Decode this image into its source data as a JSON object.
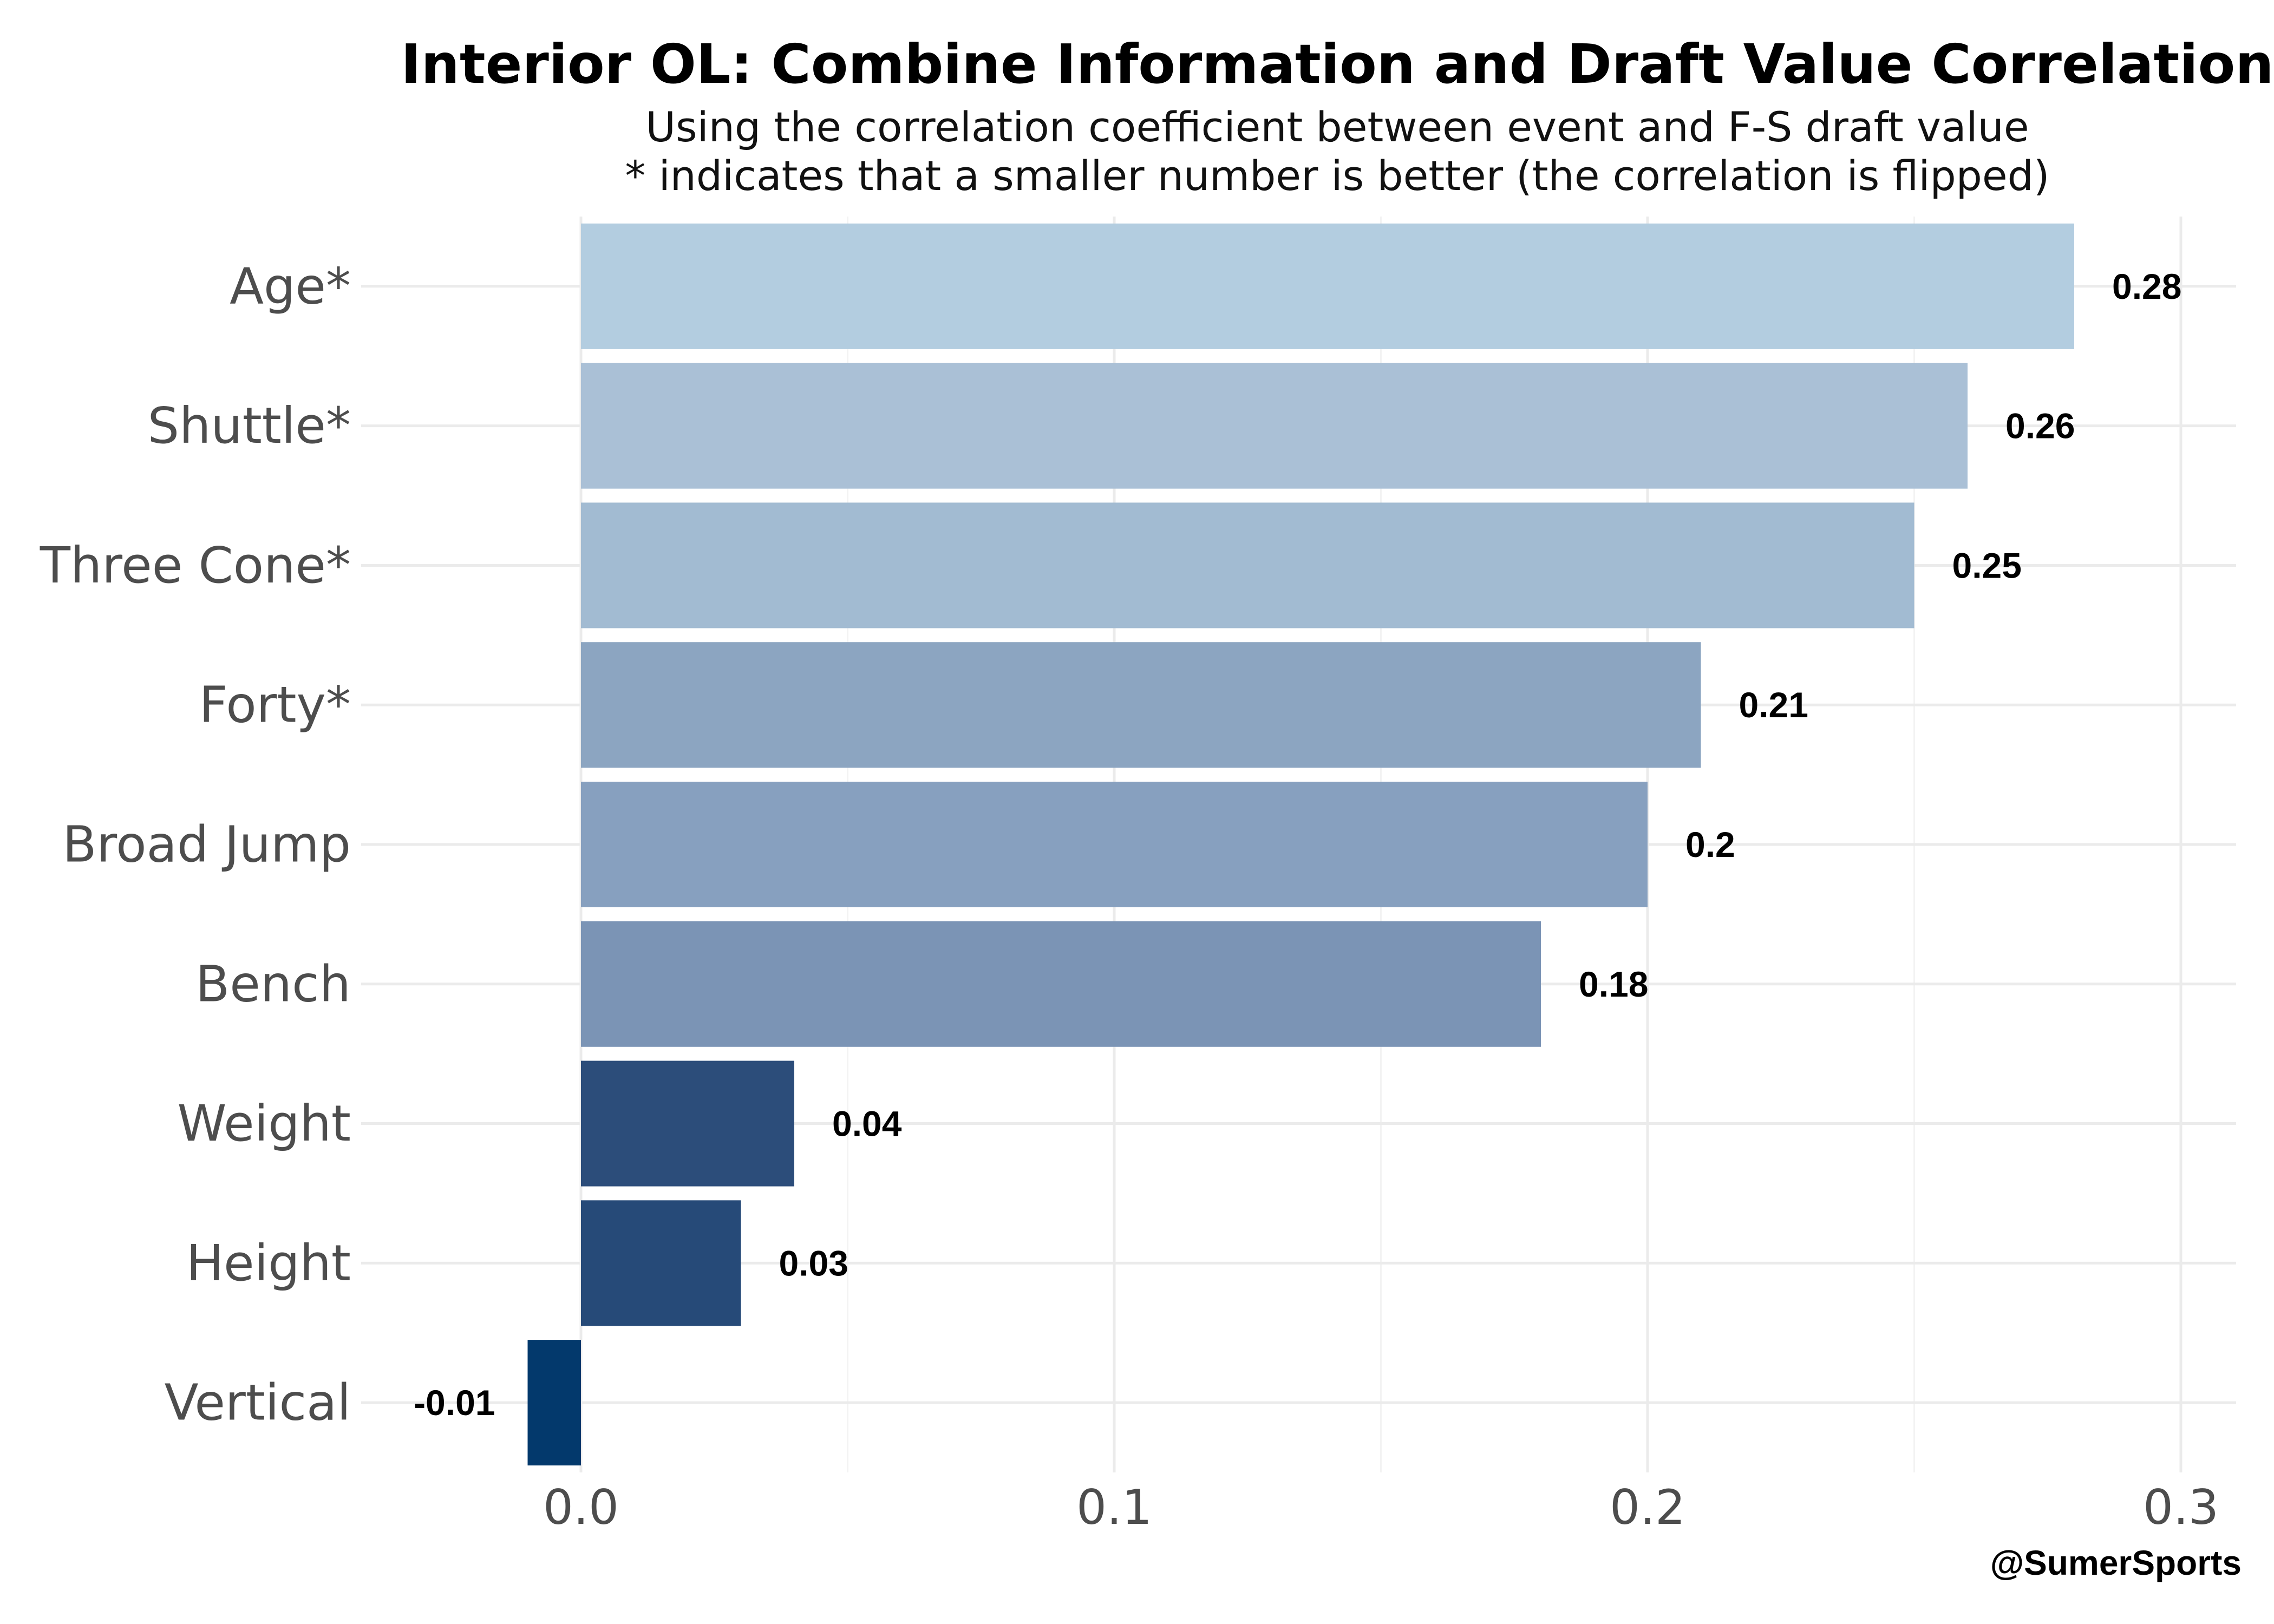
{
  "chart_data": {
    "type": "bar",
    "orientation": "horizontal",
    "title": "Interior OL: Combine Information and Draft Value Correlation",
    "subtitle_lines": [
      "Using the correlation coefficient between event and F-S draft value",
      "* indicates that a smaller number is better (the correlation is flipped)"
    ],
    "categories": [
      "Age*",
      "Shuttle*",
      "Three Cone*",
      "Forty*",
      "Broad Jump",
      "Bench",
      "Weight",
      "Height",
      "Vertical"
    ],
    "values": [
      0.28,
      0.26,
      0.25,
      0.21,
      0.2,
      0.18,
      0.04,
      0.03,
      -0.01
    ],
    "data_labels": [
      "0.28",
      "0.26",
      "0.25",
      "0.21",
      "0.2",
      "0.18",
      "0.04",
      "0.03",
      "-0.01"
    ],
    "bar_colors": [
      "#b3cde0",
      "#aac0d6",
      "#a2bbd2",
      "#8ca5c1",
      "#87a0bf",
      "#7b94b5",
      "#2c4d7a",
      "#264a78",
      "#03396c"
    ],
    "x_ticks": [
      "0.0",
      "0.1",
      "0.2",
      "0.3"
    ],
    "x_tick_values": [
      0.0,
      0.1,
      0.2,
      0.3
    ],
    "xlim": [
      -0.043,
      0.31
    ],
    "xlabel": "",
    "ylabel": "",
    "grid": true,
    "legend": "none"
  },
  "credit": "@SumerSports"
}
